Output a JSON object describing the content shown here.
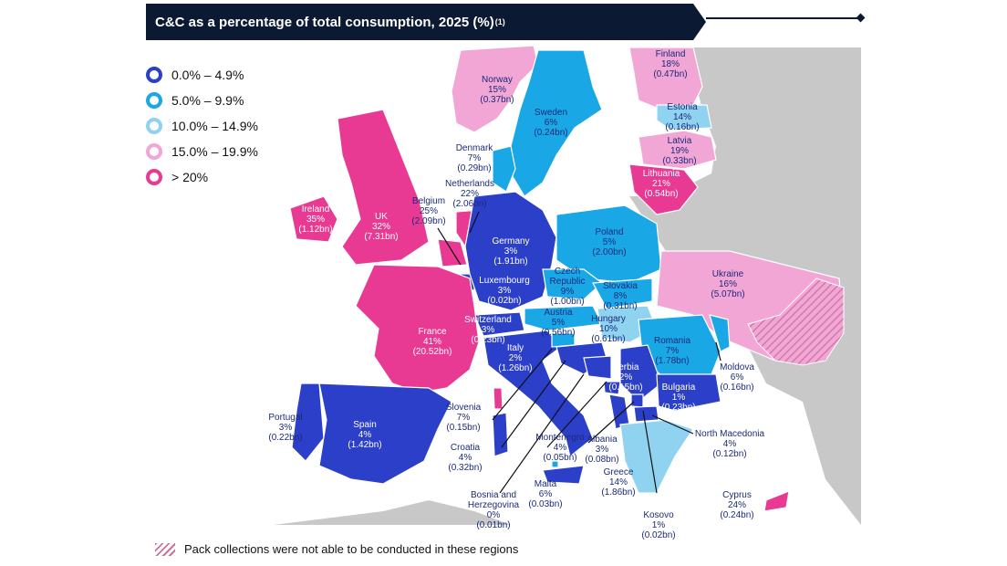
{
  "title": "C&C as a percentage of total consumption, 2025 (%)",
  "title_superscript": "(1)",
  "colors": {
    "title_bg": "#0b1933",
    "band1": "#2b3fc9",
    "band2": "#19a7e6",
    "band3": "#8fd3f0",
    "band4": "#f2a6d6",
    "band5": "#e83a93",
    "other": "#c8c8c8",
    "hatch": "#c9729b"
  },
  "legend": [
    {
      "label": "0.0% – 4.9%",
      "color": "#2b3fc9"
    },
    {
      "label": "5.0% – 9.9%",
      "color": "#19a7e6"
    },
    {
      "label": "10.0% – 14.9%",
      "color": "#8fd3f0"
    },
    {
      "label": "15.0% – 19.9%",
      "color": "#f2a6d6"
    },
    {
      "label": "> 20%",
      "color": "#e83a93"
    }
  ],
  "regions": [
    {
      "name": "Norway",
      "pct": "15%",
      "val": "(0.37bn)",
      "band": 4
    },
    {
      "name": "Sweden",
      "pct": "6%",
      "val": "(0.24bn)",
      "band": 2
    },
    {
      "name": "Finland",
      "pct": "18%",
      "val": "(0.47bn)",
      "band": 4
    },
    {
      "name": "Estonia",
      "pct": "14%",
      "val": "(0.16bn)",
      "band": 3
    },
    {
      "name": "Latvia",
      "pct": "19%",
      "val": "(0.33bn)",
      "band": 4
    },
    {
      "name": "Lithuania",
      "pct": "21%",
      "val": "(0.54bn)",
      "band": 5
    },
    {
      "name": "Denmark",
      "pct": "7%",
      "val": "(0.29bn)",
      "band": 2
    },
    {
      "name": "Netherlands",
      "pct": "22%",
      "val": "(2.06bn)",
      "band": 5
    },
    {
      "name": "Belgium",
      "pct": "25%",
      "val": "(2.09bn)",
      "band": 5
    },
    {
      "name": "Ireland",
      "pct": "35%",
      "val": "(1.12bn)",
      "band": 5
    },
    {
      "name": "UK",
      "pct": "32%",
      "val": "(7.31bn)",
      "band": 5
    },
    {
      "name": "Germany",
      "pct": "3%",
      "val": "(1.91bn)",
      "band": 1
    },
    {
      "name": "Poland",
      "pct": "5%",
      "val": "(2.00bn)",
      "band": 2
    },
    {
      "name": "Czech Republic",
      "pct": "9%",
      "val": "(1.00bn)",
      "band": 2
    },
    {
      "name": "Slovakia",
      "pct": "8%",
      "val": "(0.31bn)",
      "band": 2
    },
    {
      "name": "Luxembourg",
      "pct": "3%",
      "val": "(0.02bn)",
      "band": 1
    },
    {
      "name": "Ukraine",
      "pct": "16%",
      "val": "(5.07bn)",
      "band": 4
    },
    {
      "name": "Austria",
      "pct": "5%",
      "val": "(0.56bn)",
      "band": 2
    },
    {
      "name": "Hungary",
      "pct": "10%",
      "val": "(0.61bn)",
      "band": 3
    },
    {
      "name": "Switzerland",
      "pct": "3%",
      "val": "(0.23bn)",
      "band": 1
    },
    {
      "name": "France",
      "pct": "41%",
      "val": "(20.52bn)",
      "band": 5
    },
    {
      "name": "Romania",
      "pct": "7%",
      "val": "(1.78bn)",
      "band": 2
    },
    {
      "name": "Italy",
      "pct": "2%",
      "val": "(1.26bn)",
      "band": 1
    },
    {
      "name": "Moldova",
      "pct": "6%",
      "val": "(0.16bn)",
      "band": 2
    },
    {
      "name": "Serbia",
      "pct": "2%",
      "val": "(0.15bn)",
      "band": 1
    },
    {
      "name": "Bulgaria",
      "pct": "1%",
      "val": "(0.23bn)",
      "band": 1
    },
    {
      "name": "Slovenia",
      "pct": "7%",
      "val": "(0.15bn)",
      "band": 2
    },
    {
      "name": "Portugal",
      "pct": "3%",
      "val": "(0.22bn)",
      "band": 1
    },
    {
      "name": "Spain",
      "pct": "4%",
      "val": "(1.42bn)",
      "band": 1
    },
    {
      "name": "North Macedonia",
      "pct": "4%",
      "val": "(0.12bn)",
      "band": 1
    },
    {
      "name": "Croatia",
      "pct": "4%",
      "val": "(0.32bn)",
      "band": 1
    },
    {
      "name": "Montenegro",
      "pct": "4%",
      "val": "(0.05bn)",
      "band": 1
    },
    {
      "name": "Albania",
      "pct": "3%",
      "val": "(0.08bn)",
      "band": 1
    },
    {
      "name": "Greece",
      "pct": "14%",
      "val": "(1.86bn)",
      "band": 3
    },
    {
      "name": "Bosnia and Herzegovina",
      "pct": "0%",
      "val": "(0.01bn)",
      "band": 1
    },
    {
      "name": "Malta",
      "pct": "6%",
      "val": "(0.03bn)",
      "band": 2
    },
    {
      "name": "Kosovo",
      "pct": "1%",
      "val": "(0.02bn)",
      "band": 1
    },
    {
      "name": "Cyprus",
      "pct": "24%",
      "val": "(0.24bn)",
      "band": 5
    }
  ],
  "footnote": "Pack collections were not able to be conducted in these regions"
}
